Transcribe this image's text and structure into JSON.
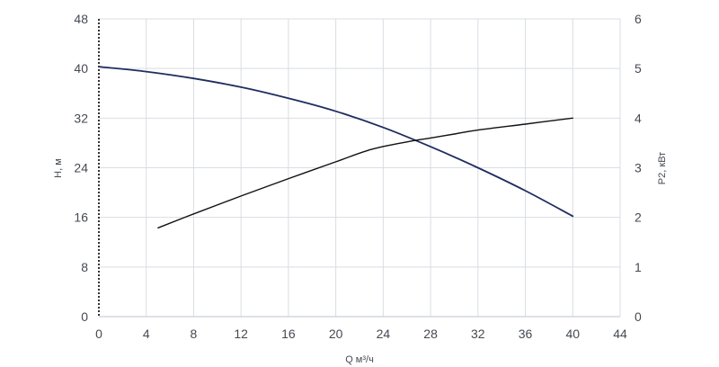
{
  "chart_data": {
    "type": "line",
    "xlabel": "Q м³/ч",
    "ylabel_left": "H, м",
    "ylabel_right": "P2, кВт",
    "x_ticks": [
      0,
      4,
      8,
      12,
      16,
      20,
      24,
      28,
      32,
      36,
      40,
      44
    ],
    "y_left_ticks": [
      0,
      8,
      16,
      24,
      32,
      40,
      48
    ],
    "y_right_ticks": [
      0,
      1,
      2,
      3,
      4,
      5,
      6
    ],
    "xlim": [
      0,
      44
    ],
    "ylim_left": [
      0,
      48
    ],
    "ylim_right": [
      0,
      6
    ],
    "grid": true,
    "series": [
      {
        "axis": "left",
        "color": "#1f2d5f",
        "x": [
          0,
          4,
          8,
          12,
          16,
          20,
          24,
          28,
          32,
          36,
          40
        ],
        "y": [
          40.3,
          39.5,
          38.4,
          37.0,
          35.2,
          33.1,
          30.5,
          27.4,
          24.0,
          20.3,
          16.2
        ]
      },
      {
        "axis": "right",
        "color": "#111111",
        "x": [
          5,
          8,
          12,
          16,
          20,
          23,
          26,
          28,
          30,
          32,
          36,
          40
        ],
        "y": [
          1.79,
          2.07,
          2.43,
          2.78,
          3.12,
          3.37,
          3.52,
          3.6,
          3.68,
          3.76,
          3.88,
          4.0
        ]
      }
    ]
  }
}
